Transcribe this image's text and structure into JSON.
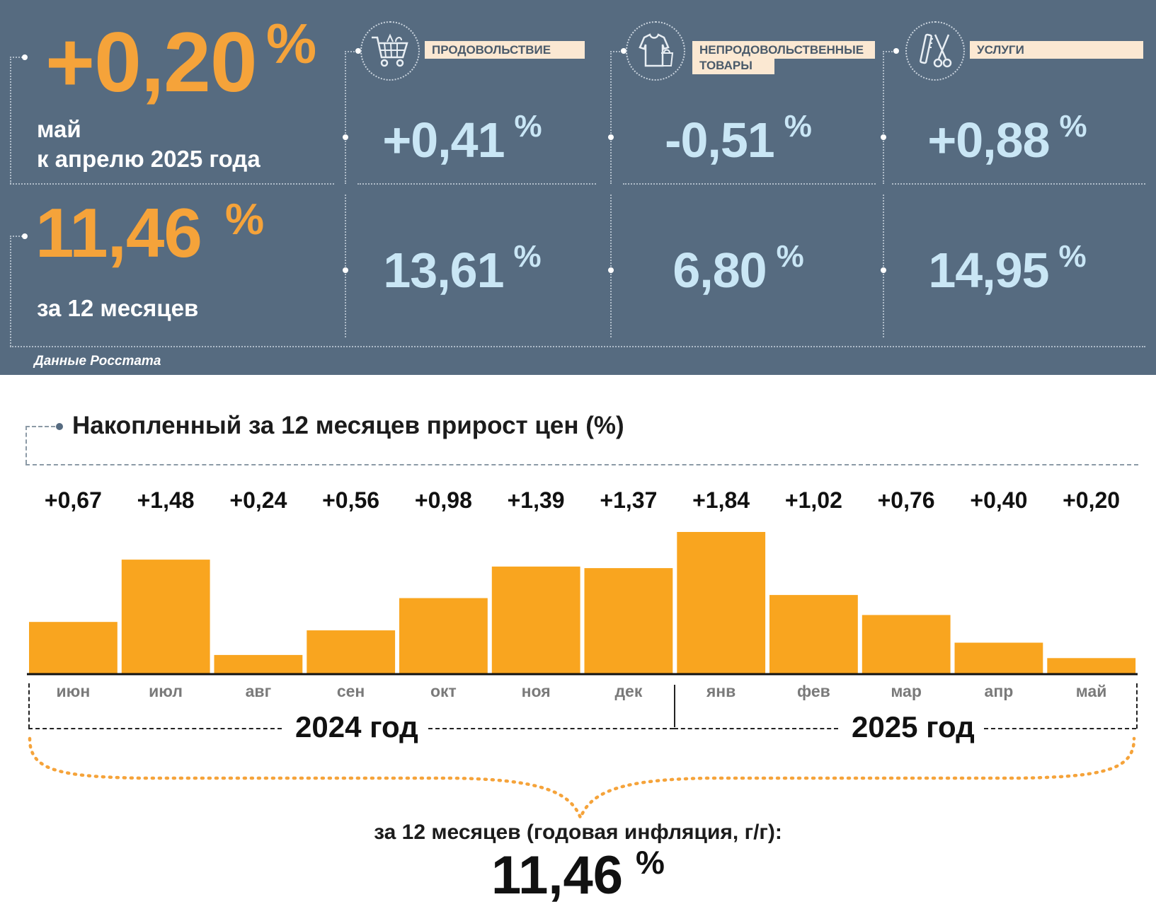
{
  "summary": {
    "monthly": {
      "value": "+0,20",
      "unit": "%",
      "label_line1": "май",
      "label_line2": "к апрелю 2025 года"
    },
    "annual": {
      "value": "11,46",
      "unit": "%",
      "label": "за 12 месяцев"
    },
    "source": "Данные Росстата"
  },
  "categories": [
    {
      "icon": "shopping-cart-icon",
      "label": "ПРОДОВОЛЬСТВИЕ",
      "monthly": "+0,41",
      "annual": "13,61",
      "unit": "%"
    },
    {
      "icon": "clothing-icon",
      "label": "НЕПРОДОВОЛЬСТВЕННЫЕ ТОВАРЫ",
      "label_line1": "НЕПРОДОВОЛЬСТВЕННЫЕ",
      "label_line2": "ТОВАРЫ",
      "monthly": "-0,51",
      "annual": "6,80",
      "unit": "%"
    },
    {
      "icon": "comb-scissors-icon",
      "label": "УСЛУГИ",
      "monthly": "+0,88",
      "annual": "14,95",
      "unit": "%"
    }
  ],
  "colors": {
    "panel": "#566b80",
    "accent": "#f5a33a",
    "value_blue": "#c9e6f5",
    "bar": "#f9a51f"
  },
  "chart_data": {
    "type": "bar",
    "title": "Накопленный за 12 месяцев прирост цен (%)",
    "categories": [
      "июн",
      "июл",
      "авг",
      "сен",
      "окт",
      "ноя",
      "дек",
      "янв",
      "фев",
      "мар",
      "апр",
      "май"
    ],
    "values": [
      0.67,
      1.48,
      0.24,
      0.56,
      0.98,
      1.39,
      1.37,
      1.84,
      1.02,
      0.76,
      0.4,
      0.2
    ],
    "value_labels": [
      "+0,67",
      "+1,48",
      "+0,24",
      "+0,56",
      "+0,98",
      "+1,39",
      "+1,37",
      "+1,84",
      "+1,02",
      "+0,76",
      "+0,40",
      "+0,20"
    ],
    "years": [
      {
        "label": "2024 год",
        "months": 7
      },
      {
        "label": "2025 год",
        "months": 5
      }
    ],
    "footer_label": "за 12 месяцев (годовая инфляция, г/г):",
    "footer_value": "11,46",
    "footer_unit": "%"
  }
}
